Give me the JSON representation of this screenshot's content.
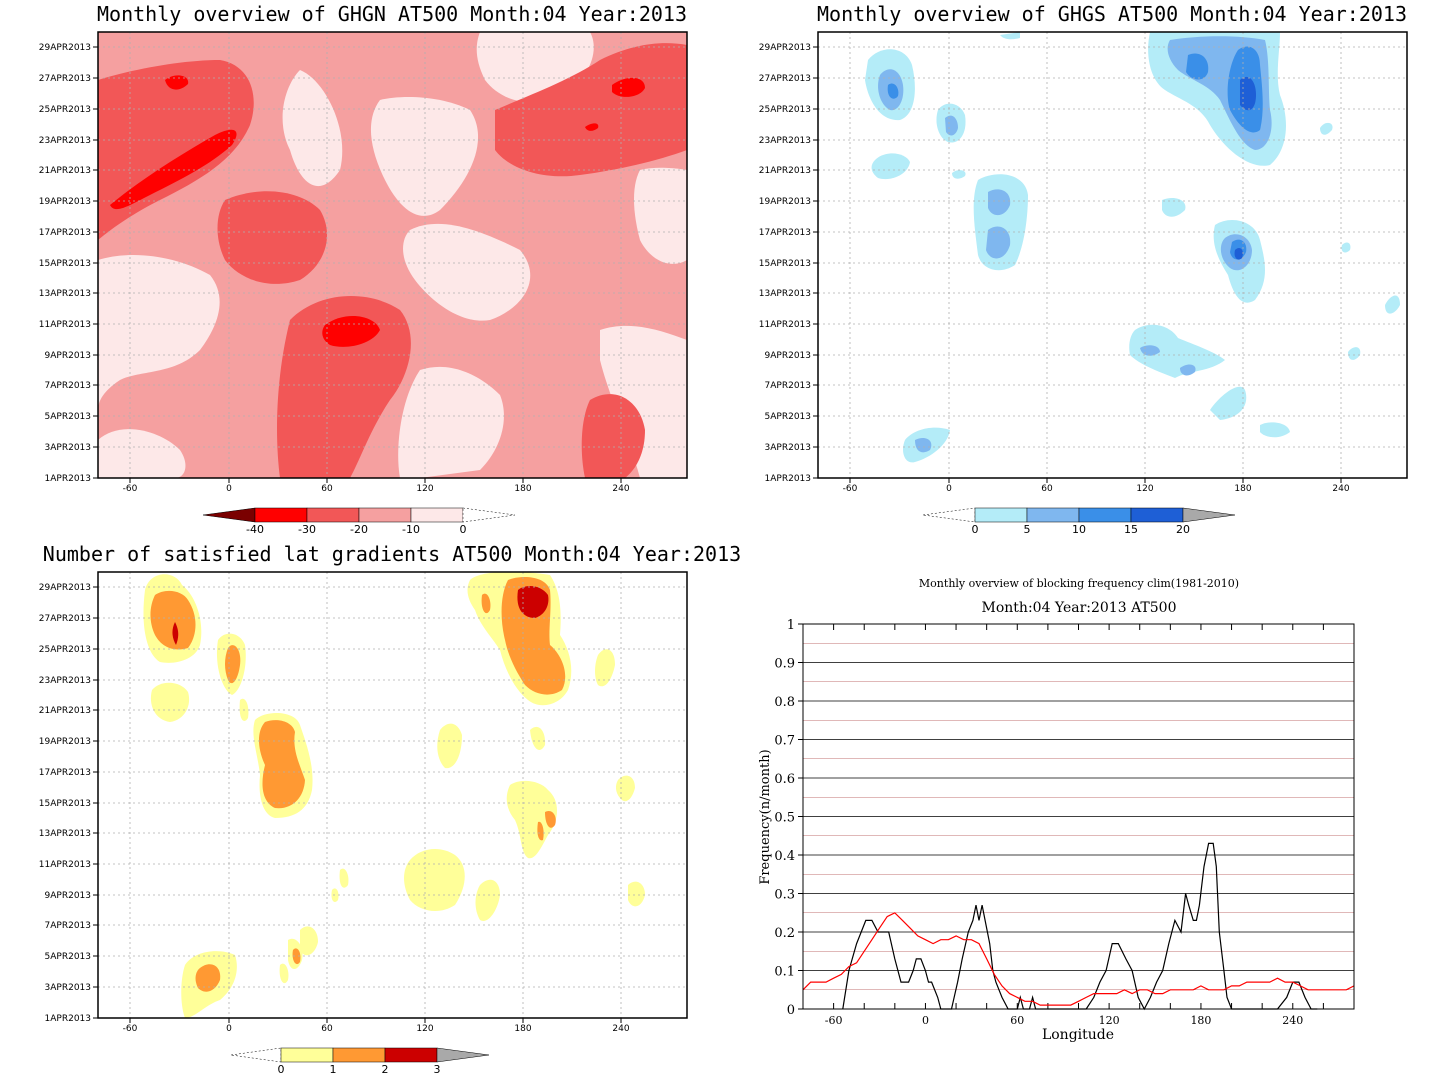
{
  "panels": {
    "ghgn": {
      "title": "Monthly overview of GHGN AT500 Month:04 Year:2013",
      "colorbar": {
        "labels": [
          "-40",
          "-30",
          "-20",
          "-10",
          "0"
        ],
        "colors": [
          "#7a0000",
          "#ff0000",
          "#f25757",
          "#f5a0a0",
          "#fde8e8"
        ]
      },
      "dominant_color": "#f5a0a0"
    },
    "ghgs": {
      "title": "Monthly overview of GHGS AT500 Month:04 Year:2013",
      "colorbar": {
        "labels": [
          "0",
          "5",
          "10",
          "15",
          "20"
        ],
        "colors": [
          "#b4ecf8",
          "#7fb7ef",
          "#3a8fe8",
          "#1e5fd6",
          "#a9a9a9"
        ]
      }
    },
    "lat": {
      "title": "Number of satisfied lat gradients AT500 Month:04 Year:2013",
      "colorbar": {
        "labels": [
          "0",
          "1",
          "2",
          "3"
        ],
        "colors": [
          "#ffff99",
          "#ff9933",
          "#cc0000",
          "#a9a9a9"
        ]
      }
    },
    "freq": {
      "title": "Monthly overview of blocking frequency clim(1981-2010)",
      "subtitle": "Month:04 Year:2013  AT500"
    }
  },
  "axes": {
    "date_ticks": [
      "1APR2013",
      "3APR2013",
      "5APR2013",
      "7APR2013",
      "9APR2013",
      "11APR2013",
      "13APR2013",
      "15APR2013",
      "17APR2013",
      "19APR2013",
      "21APR2013",
      "23APR2013",
      "25APR2013",
      "27APR2013",
      "29APR2013"
    ],
    "lon_ticks": [
      "-60",
      "0",
      "60",
      "120",
      "180",
      "240"
    ],
    "lon_range": [
      -78,
      282
    ]
  },
  "chart_data": [
    {
      "type": "heatmap",
      "title": "Monthly overview of GHGN AT500 Month:04 Year:2013",
      "xlim": [
        -78,
        282
      ],
      "ylim": [
        "1APR2013",
        "30APR2013"
      ],
      "colorbar": [
        -40,
        -30,
        -20,
        -10,
        0
      ],
      "grid": true
    },
    {
      "type": "heatmap",
      "title": "Monthly overview of GHGS AT500 Month:04 Year:2013",
      "xlim": [
        -78,
        282
      ],
      "ylim": [
        "1APR2013",
        "30APR2013"
      ],
      "colorbar": [
        0,
        5,
        10,
        15,
        20
      ],
      "grid": true
    },
    {
      "type": "heatmap",
      "title": "Number of satisfied lat gradients AT500 Month:04 Year:2013",
      "xlim": [
        -78,
        282
      ],
      "ylim": [
        "1APR2013",
        "30APR2013"
      ],
      "colorbar": [
        0,
        1,
        2,
        3
      ],
      "grid": true
    },
    {
      "type": "line",
      "title": "Monthly overview of blocking frequency clim(1981-2010)",
      "subtitle": "Month:04 Year:2013  AT500",
      "xlabel": "Longitude",
      "ylabel": "Frequency(n/month)",
      "xlim": [
        -80,
        280
      ],
      "ylim": [
        0,
        1
      ],
      "x_ticks": [
        -60,
        0,
        60,
        120,
        180,
        240
      ],
      "y_ticks": [
        0,
        0.1,
        0.2,
        0.3,
        0.4,
        0.5,
        0.6,
        0.7,
        0.8,
        0.9,
        1
      ],
      "grid": true,
      "series": [
        {
          "color": "#000000",
          "x": [
            -54,
            -50,
            -45,
            -42,
            -39,
            -35,
            -31,
            -29,
            -24,
            -20,
            -16,
            -11,
            -8,
            -6,
            -3,
            0,
            2,
            4,
            8,
            10,
            14,
            17,
            21,
            24,
            28,
            31,
            33,
            35,
            37,
            39,
            42,
            44,
            46,
            50,
            54,
            60,
            62,
            64,
            66,
            68,
            70,
            72,
            76,
            80,
            84,
            88,
            92,
            98,
            105,
            110,
            114,
            118,
            122,
            126,
            131,
            135,
            139,
            143,
            147,
            151,
            155,
            159,
            163,
            167,
            170,
            172,
            175,
            177,
            179,
            182,
            185,
            188,
            190,
            192,
            195,
            197,
            200,
            203,
            206,
            209,
            216,
            222,
            230,
            236,
            240,
            244,
            248,
            252,
            256
          ],
          "values": [
            0,
            0.1,
            0.17,
            0.2,
            0.23,
            0.23,
            0.2,
            0.2,
            0.2,
            0.13,
            0.07,
            0.07,
            0.1,
            0.13,
            0.13,
            0.1,
            0.07,
            0.07,
            0.03,
            0,
            0,
            0,
            0.07,
            0.13,
            0.2,
            0.23,
            0.27,
            0.23,
            0.27,
            0.23,
            0.17,
            0.1,
            0.07,
            0.03,
            0,
            0,
            0.03,
            0,
            0,
            0,
            0.03,
            0,
            0,
            0,
            0,
            0,
            0,
            0,
            0,
            0.03,
            0.07,
            0.1,
            0.17,
            0.17,
            0.13,
            0.1,
            0.03,
            0,
            0.03,
            0.07,
            0.1,
            0.17,
            0.23,
            0.2,
            0.3,
            0.27,
            0.23,
            0.23,
            0.27,
            0.37,
            0.43,
            0.43,
            0.37,
            0.2,
            0.1,
            0.03,
            0,
            0,
            0,
            0,
            0,
            0,
            0,
            0.03,
            0.07,
            0.07,
            0.03,
            0,
            0
          ]
        },
        {
          "color": "#ff0000",
          "x": [
            -80,
            -75,
            -70,
            -65,
            -60,
            -55,
            -50,
            -45,
            -40,
            -35,
            -30,
            -25,
            -20,
            -15,
            -10,
            -5,
            0,
            5,
            10,
            15,
            20,
            25,
            30,
            35,
            40,
            45,
            50,
            55,
            60,
            65,
            70,
            75,
            80,
            85,
            90,
            95,
            100,
            105,
            110,
            115,
            120,
            125,
            130,
            135,
            140,
            145,
            150,
            155,
            160,
            165,
            170,
            175,
            180,
            185,
            190,
            195,
            200,
            205,
            210,
            215,
            220,
            225,
            230,
            235,
            240,
            245,
            250,
            255,
            260,
            265,
            270,
            275,
            280
          ],
          "values": [
            0.05,
            0.07,
            0.07,
            0.07,
            0.08,
            0.09,
            0.11,
            0.12,
            0.15,
            0.18,
            0.21,
            0.24,
            0.25,
            0.23,
            0.21,
            0.19,
            0.18,
            0.17,
            0.18,
            0.18,
            0.19,
            0.18,
            0.18,
            0.17,
            0.13,
            0.09,
            0.06,
            0.04,
            0.03,
            0.02,
            0.02,
            0.01,
            0.01,
            0.01,
            0.01,
            0.01,
            0.02,
            0.03,
            0.04,
            0.04,
            0.04,
            0.04,
            0.05,
            0.04,
            0.05,
            0.05,
            0.04,
            0.04,
            0.05,
            0.05,
            0.05,
            0.05,
            0.06,
            0.05,
            0.05,
            0.05,
            0.06,
            0.06,
            0.07,
            0.07,
            0.07,
            0.07,
            0.08,
            0.07,
            0.07,
            0.06,
            0.05,
            0.05,
            0.05,
            0.05,
            0.05,
            0.05,
            0.06
          ]
        }
      ]
    }
  ]
}
